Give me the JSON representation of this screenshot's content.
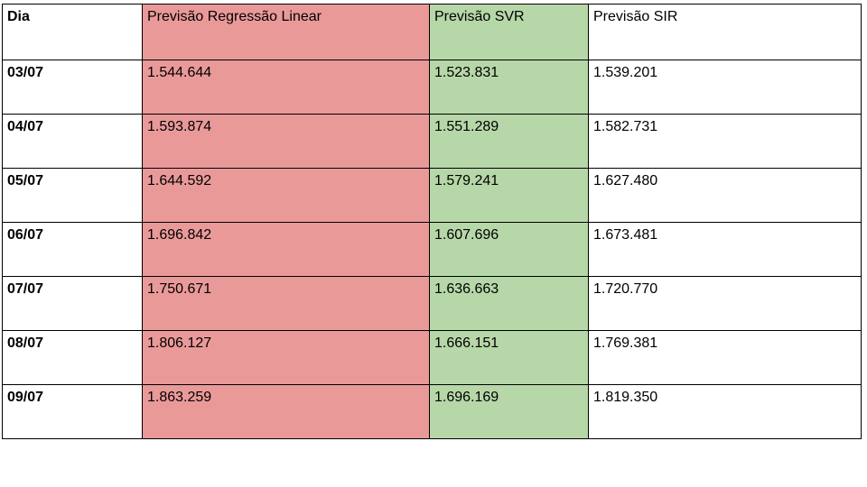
{
  "colors": {
    "linear_regression_column": "#ea9999",
    "svr_column": "#b6d7a8",
    "border": "#000000"
  },
  "table": {
    "headers": {
      "day": "Dia",
      "linear_regression": "Previsão Regressão Linear",
      "svr": "Previsão SVR",
      "sir": "Previsão SIR"
    },
    "rows": [
      {
        "day": "03/07",
        "linear_regression": "1.544.644",
        "svr": "1.523.831",
        "sir": "1.539.201"
      },
      {
        "day": "04/07",
        "linear_regression": "1.593.874",
        "svr": "1.551.289",
        "sir": "1.582.731"
      },
      {
        "day": "05/07",
        "linear_regression": "1.644.592",
        "svr": "1.579.241",
        "sir": "1.627.480"
      },
      {
        "day": "06/07",
        "linear_regression": "1.696.842",
        "svr": "1.607.696",
        "sir": "1.673.481"
      },
      {
        "day": "07/07",
        "linear_regression": "1.750.671",
        "svr": "1.636.663",
        "sir": "1.720.770"
      },
      {
        "day": "08/07",
        "linear_regression": "1.806.127",
        "svr": "1.666.151",
        "sir": "1.769.381"
      },
      {
        "day": "09/07",
        "linear_regression": "1.863.259",
        "svr": "1.696.169",
        "sir": "1.819.350"
      }
    ]
  }
}
